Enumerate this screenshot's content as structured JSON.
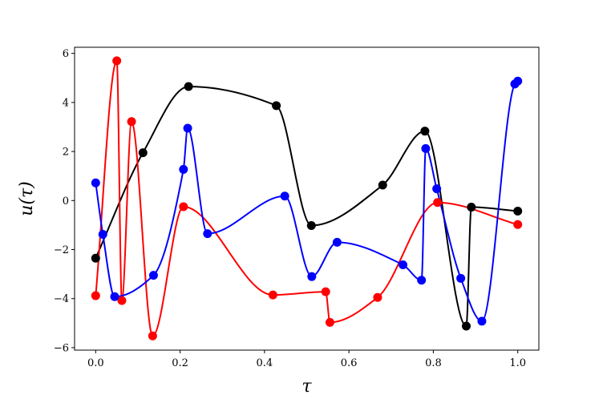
{
  "chart_data": {
    "type": "line",
    "xlabel": "τ",
    "ylabel": "u(τ)",
    "xlim": [
      -0.05,
      1.05
    ],
    "ylim": [
      -6.1,
      6.25
    ],
    "xticks": [
      0.0,
      0.2,
      0.4,
      0.6,
      0.8,
      1.0
    ],
    "xtick_labels": [
      "0.0",
      "0.2",
      "0.4",
      "0.6",
      "0.8",
      "1.0"
    ],
    "yticks": [
      -6,
      -4,
      -2,
      0,
      2,
      4,
      6
    ],
    "ytick_labels": [
      "−6",
      "−4",
      "−2",
      "0",
      "2",
      "4",
      "6"
    ],
    "grid": false,
    "legend": "none",
    "series": [
      {
        "color": "#000000",
        "points": [
          [
            0.0,
            -2.35
          ],
          [
            0.112,
            1.95
          ],
          [
            0.22,
            4.65
          ],
          [
            0.428,
            3.87
          ],
          [
            0.511,
            -1.02
          ],
          [
            0.68,
            0.63
          ],
          [
            0.78,
            2.83
          ],
          [
            0.878,
            -5.12
          ],
          [
            0.89,
            -0.27
          ],
          [
            1.0,
            -0.43
          ]
        ]
      },
      {
        "color": "#ff0000",
        "points": [
          [
            0.0,
            -3.88
          ],
          [
            0.05,
            5.7
          ],
          [
            0.062,
            -4.08
          ],
          [
            0.085,
            3.22
          ],
          [
            0.135,
            -5.52
          ],
          [
            0.208,
            -0.25
          ],
          [
            0.42,
            -3.85
          ],
          [
            0.545,
            -3.72
          ],
          [
            0.555,
            -4.97
          ],
          [
            0.668,
            -3.95
          ],
          [
            0.81,
            -0.08
          ],
          [
            1.0,
            -0.98
          ]
        ]
      },
      {
        "color": "#0000ff",
        "points": [
          [
            0.0,
            0.72
          ],
          [
            0.017,
            -1.38
          ],
          [
            0.045,
            -3.92
          ],
          [
            0.137,
            -3.05
          ],
          [
            0.208,
            1.27
          ],
          [
            0.218,
            2.95
          ],
          [
            0.265,
            -1.35
          ],
          [
            0.448,
            0.18
          ],
          [
            0.512,
            -3.1
          ],
          [
            0.572,
            -1.7
          ],
          [
            0.728,
            -2.62
          ],
          [
            0.772,
            -3.25
          ],
          [
            0.782,
            2.12
          ],
          [
            0.808,
            0.48
          ],
          [
            0.865,
            -3.17
          ],
          [
            0.915,
            -4.92
          ],
          [
            0.993,
            4.75
          ],
          [
            1.0,
            4.87
          ]
        ]
      }
    ]
  }
}
